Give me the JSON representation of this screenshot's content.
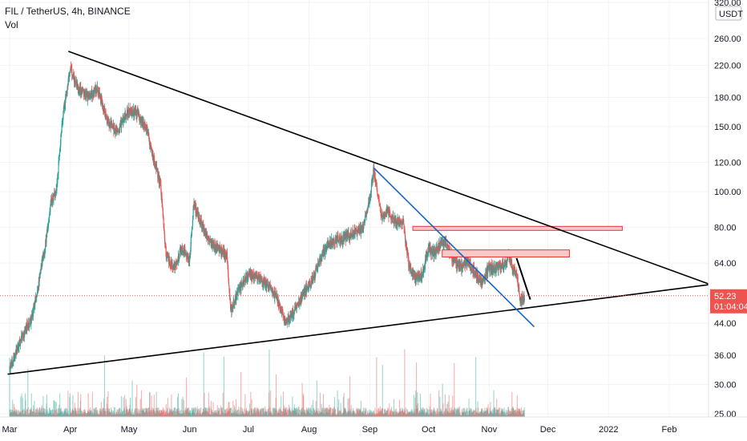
{
  "header": {
    "symbol_line": "FIL / TetherUS, 4h, BINANCE",
    "indicator_label": "Vol"
  },
  "price_axis": {
    "currency": "USDT",
    "top_label": "320.00"
  },
  "last_price": {
    "value": "52.23",
    "countdown": "01:04:04"
  },
  "colors": {
    "up": "#26a69a",
    "down": "#ef5350",
    "trendline": "#000000",
    "channel": "#1565c0",
    "zone_fill": "#f8c7c7",
    "zone_border": "#e53935",
    "price_line": "#ef5350"
  },
  "chart_data": {
    "type": "candlestick",
    "title": "FIL / TetherUS, 4h, BINANCE",
    "xlabel": "",
    "ylabel": "",
    "y_scale": "log",
    "ylim": [
      25,
      320
    ],
    "y_ticks": [
      "25.00",
      "30.00",
      "36.00",
      "44.00",
      "64.00",
      "80.00",
      "100.00",
      "120.00",
      "150.00",
      "180.00",
      "220.00",
      "260.00"
    ],
    "y_tick_values": [
      25,
      30,
      36,
      44,
      64,
      80,
      100,
      120,
      150,
      180,
      220,
      260
    ],
    "x_ticks": [
      "Mar",
      "Apr",
      "May",
      "Jun",
      "Jul",
      "Aug",
      "Sep",
      "Oct",
      "Nov",
      "Dec",
      "2022",
      "Feb"
    ],
    "x_tick_dates": [
      "2021-03-01",
      "2021-04-01",
      "2021-05-01",
      "2021-06-01",
      "2021-07-01",
      "2021-08-01",
      "2021-09-01",
      "2021-10-01",
      "2021-11-01",
      "2021-12-01",
      "2022-01-01",
      "2022-02-01"
    ],
    "grid": true,
    "anchors": [
      [
        "2021-03-01",
        33
      ],
      [
        "2021-03-08",
        41
      ],
      [
        "2021-03-12",
        45
      ],
      [
        "2021-03-15",
        53
      ],
      [
        "2021-03-19",
        70
      ],
      [
        "2021-03-22",
        93
      ],
      [
        "2021-03-25",
        102
      ],
      [
        "2021-03-28",
        158
      ],
      [
        "2021-04-01",
        215
      ],
      [
        "2021-04-05",
        190
      ],
      [
        "2021-04-10",
        180
      ],
      [
        "2021-04-15",
        190
      ],
      [
        "2021-04-20",
        155
      ],
      [
        "2021-04-25",
        145
      ],
      [
        "2021-04-30",
        165
      ],
      [
        "2021-05-05",
        163
      ],
      [
        "2021-05-10",
        148
      ],
      [
        "2021-05-13",
        125
      ],
      [
        "2021-05-17",
        105
      ],
      [
        "2021-05-20",
        67
      ],
      [
        "2021-05-24",
        62
      ],
      [
        "2021-05-28",
        70
      ],
      [
        "2021-06-01",
        66
      ],
      [
        "2021-06-03",
        92
      ],
      [
        "2021-06-07",
        82
      ],
      [
        "2021-06-11",
        73
      ],
      [
        "2021-06-16",
        70
      ],
      [
        "2021-06-20",
        67
      ],
      [
        "2021-06-22",
        48
      ],
      [
        "2021-06-26",
        54
      ],
      [
        "2021-07-01",
        60
      ],
      [
        "2021-07-06",
        58
      ],
      [
        "2021-07-11",
        56
      ],
      [
        "2021-07-16",
        51
      ],
      [
        "2021-07-20",
        44
      ],
      [
        "2021-07-25",
        48
      ],
      [
        "2021-07-29",
        53
      ],
      [
        "2021-08-03",
        58
      ],
      [
        "2021-08-08",
        68
      ],
      [
        "2021-08-13",
        74
      ],
      [
        "2021-08-18",
        74
      ],
      [
        "2021-08-23",
        77
      ],
      [
        "2021-08-28",
        79
      ],
      [
        "2021-09-01",
        96
      ],
      [
        "2021-09-03",
        115
      ],
      [
        "2021-09-07",
        86
      ],
      [
        "2021-09-10",
        88
      ],
      [
        "2021-09-14",
        83
      ],
      [
        "2021-09-18",
        83
      ],
      [
        "2021-09-21",
        63
      ],
      [
        "2021-09-24",
        58
      ],
      [
        "2021-09-28",
        60
      ],
      [
        "2021-10-01",
        70
      ],
      [
        "2021-10-04",
        68
      ],
      [
        "2021-10-07",
        72
      ],
      [
        "2021-10-10",
        73
      ],
      [
        "2021-10-13",
        66
      ],
      [
        "2021-10-17",
        62
      ],
      [
        "2021-10-21",
        65
      ],
      [
        "2021-10-25",
        60
      ],
      [
        "2021-10-28",
        57
      ],
      [
        "2021-11-01",
        62
      ],
      [
        "2021-11-04",
        62
      ],
      [
        "2021-11-08",
        63
      ],
      [
        "2021-11-11",
        67
      ],
      [
        "2021-11-13",
        62
      ],
      [
        "2021-11-15",
        60
      ],
      [
        "2021-11-17",
        50
      ],
      [
        "2021-11-19",
        52.23
      ]
    ],
    "annotations": {
      "upper_trendline": [
        [
          "2021-03-31",
          240
        ],
        [
          "2022-02-22",
          56
        ]
      ],
      "lower_trendline": [
        [
          "2021-02-28",
          32
        ],
        [
          "2022-02-22",
          56
        ]
      ],
      "descending_channel": [
        [
          "2021-09-03",
          116
        ],
        [
          "2021-11-24",
          43
        ]
      ],
      "short_trendline": [
        [
          "2021-11-15",
          66
        ],
        [
          "2021-11-22",
          51
        ]
      ],
      "resistance_zone_upper": {
        "from": "2021-09-23",
        "to": "2022-01-08",
        "low": 78.5,
        "high": 80.5
      },
      "resistance_zone_lower": {
        "from": "2021-10-08",
        "to": "2021-12-12",
        "low": 66.5,
        "high": 69.5
      },
      "last_price_line": 52.23
    }
  }
}
